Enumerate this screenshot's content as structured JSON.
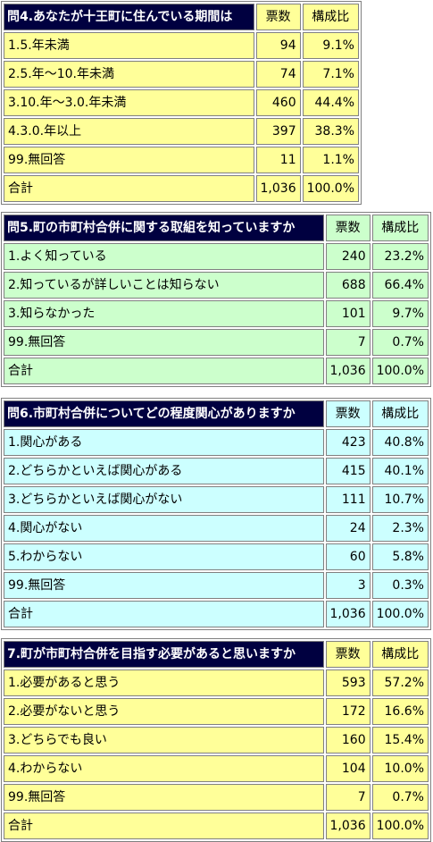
{
  "tables": [
    {
      "question": "問4.あなたが十王町に住んでいる期間は",
      "col_votes": "票数",
      "col_ratio": "構成比",
      "rows": [
        {
          "label": "1.5.年未満",
          "votes": "94",
          "ratio": "9.1%"
        },
        {
          "label": "2.5.年～10.年未満",
          "votes": "74",
          "ratio": "7.1%"
        },
        {
          "label": "3.10.年～3.0.年未満",
          "votes": "460",
          "ratio": "44.4%"
        },
        {
          "label": "4.3.0.年以上",
          "votes": "397",
          "ratio": "38.3%"
        },
        {
          "label": "99.無回答",
          "votes": "11",
          "ratio": "1.1%"
        },
        {
          "label": "合計",
          "votes": "1,036",
          "ratio": "100.0%"
        }
      ],
      "bg": "#ffff99"
    },
    {
      "question": "問5.町の市町村合併に関する取組を知っていますか",
      "col_votes": "票数",
      "col_ratio": "構成比",
      "rows": [
        {
          "label": "1.よく知っている",
          "votes": "240",
          "ratio": "23.2%"
        },
        {
          "label": "2.知っているが詳しいことは知らない",
          "votes": "688",
          "ratio": "66.4%"
        },
        {
          "label": "3.知らなかった",
          "votes": "101",
          "ratio": "9.7%"
        },
        {
          "label": "99.無回答",
          "votes": "7",
          "ratio": "0.7%"
        },
        {
          "label": "合計",
          "votes": "1,036",
          "ratio": "100.0%"
        }
      ],
      "bg": "#ccffcc"
    },
    {
      "question": "問6.市町村合併についてどの程度関心がありますか",
      "col_votes": "票数",
      "col_ratio": "構成比",
      "rows": [
        {
          "label": "1.関心がある",
          "votes": "423",
          "ratio": "40.8%"
        },
        {
          "label": "2.どちらかといえば関心がある",
          "votes": "415",
          "ratio": "40.1%"
        },
        {
          "label": "3.どちらかといえば関心がない",
          "votes": "111",
          "ratio": "10.7%"
        },
        {
          "label": "4.関心がない",
          "votes": "24",
          "ratio": "2.3%"
        },
        {
          "label": "5.わからない",
          "votes": "60",
          "ratio": "5.8%"
        },
        {
          "label": "99.無回答",
          "votes": "3",
          "ratio": "0.3%"
        },
        {
          "label": "合計",
          "votes": "1,036",
          "ratio": "100.0%"
        }
      ],
      "bg": "#ccffff"
    },
    {
      "question": "7.町が市町村合併を目指す必要があると思いますか",
      "col_votes": "票数",
      "col_ratio": "構成比",
      "rows": [
        {
          "label": "1.必要があると思う",
          "votes": "593",
          "ratio": "57.2%"
        },
        {
          "label": "2.必要がないと思う",
          "votes": "172",
          "ratio": "16.6%"
        },
        {
          "label": "3.どちらでも良い",
          "votes": "160",
          "ratio": "15.4%"
        },
        {
          "label": "4.わからない",
          "votes": "104",
          "ratio": "10.0%"
        },
        {
          "label": "99.無回答",
          "votes": "7",
          "ratio": "0.7%"
        },
        {
          "label": "合計",
          "votes": "1,036",
          "ratio": "100.0%"
        }
      ],
      "bg": "#ffff99"
    }
  ]
}
